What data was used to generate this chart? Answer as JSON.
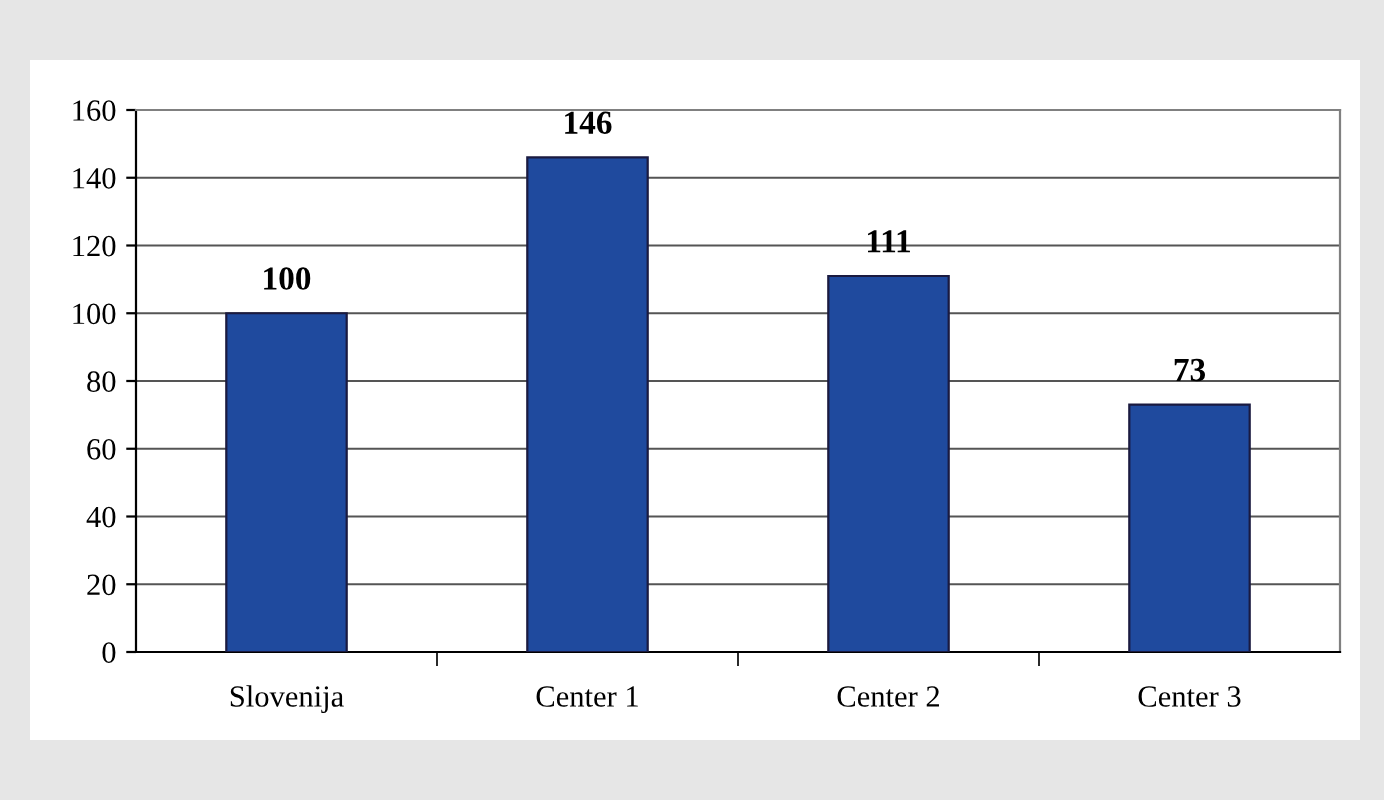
{
  "chart_data": {
    "type": "bar",
    "categories": [
      "Slovenija",
      "Center 1",
      "Center 2",
      "Center 3"
    ],
    "values": [
      100,
      146,
      111,
      73
    ],
    "color": "#1f4a9e",
    "ylim": [
      0,
      160
    ],
    "yticks": [
      0,
      20,
      40,
      60,
      80,
      100,
      120,
      140,
      160
    ],
    "grid": "y",
    "data_labels": true
  }
}
